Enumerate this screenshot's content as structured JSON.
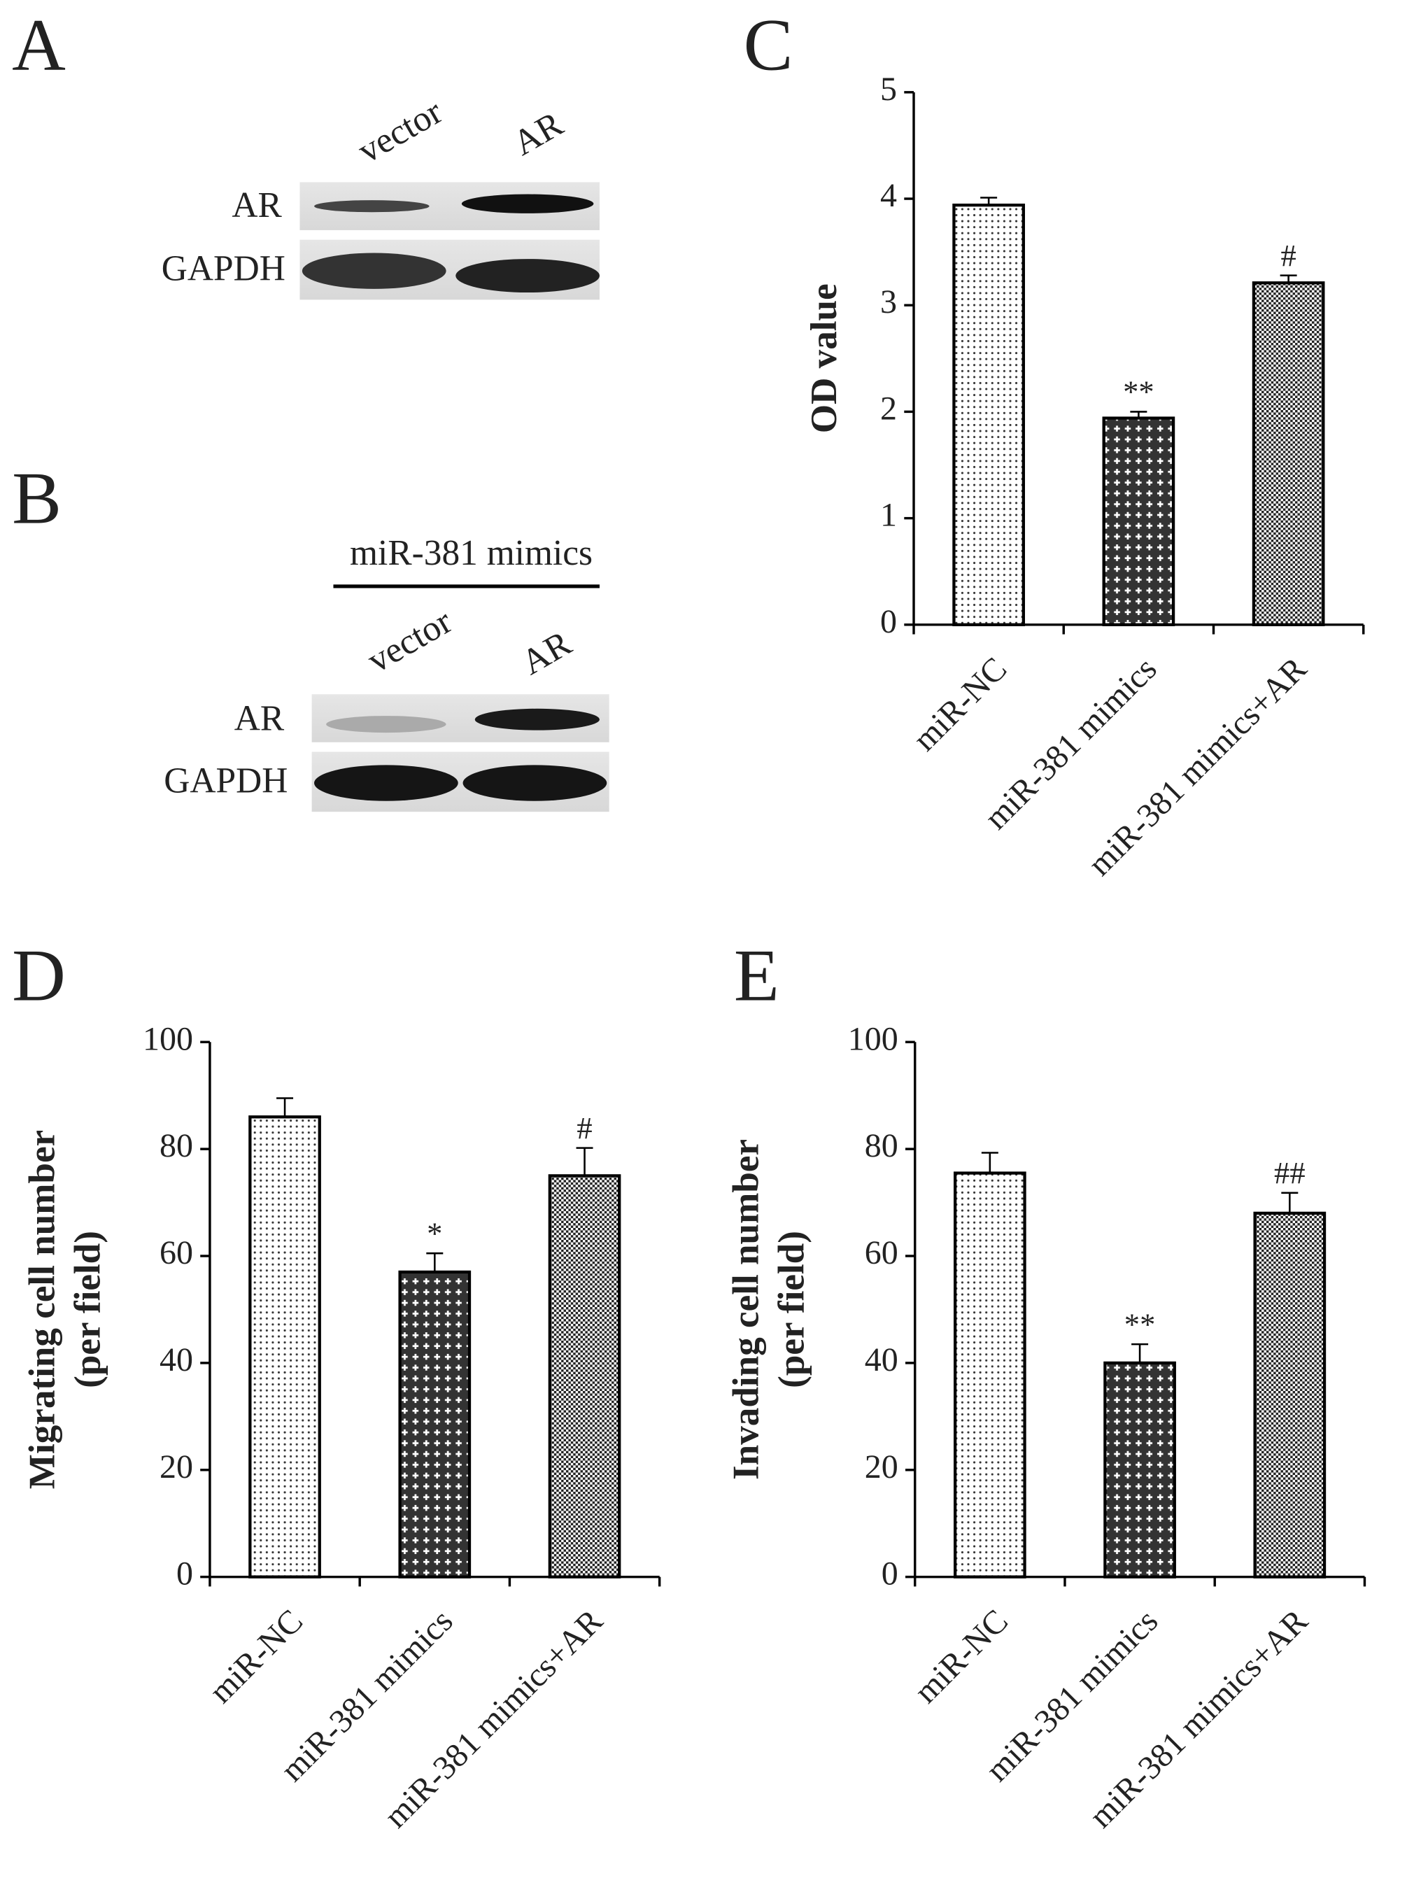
{
  "chart_data": [
    {
      "type": "bar",
      "panel": "C",
      "ylabel": [
        "OD value"
      ],
      "categories": [
        "miR-NC",
        "miR-381 mimics",
        "miR-381 mimics+AR"
      ],
      "values": [
        3.94,
        1.94,
        3.21
      ],
      "errors": [
        0.07,
        0.06,
        0.07
      ],
      "annotations": [
        null,
        "**",
        "#"
      ],
      "patterns": [
        "dots",
        "crosses",
        "checks"
      ],
      "ylim": [
        0,
        5
      ],
      "yticks": [
        0,
        1,
        2,
        3,
        4,
        5
      ]
    },
    {
      "type": "bar",
      "panel": "D",
      "ylabel": [
        "Migrating cell number",
        "(per field)"
      ],
      "categories": [
        "miR-NC",
        "miR-381 mimics",
        "miR-381 mimics+AR"
      ],
      "values": [
        86,
        57,
        75
      ],
      "errors": [
        3.5,
        3.5,
        5.2
      ],
      "annotations": [
        null,
        "*",
        "#"
      ],
      "patterns": [
        "dots",
        "crosses",
        "checks"
      ],
      "ylim": [
        0,
        100
      ],
      "yticks": [
        0,
        20,
        40,
        60,
        80,
        100
      ]
    },
    {
      "type": "bar",
      "panel": "E",
      "ylabel": [
        "Invading cell number",
        "(per field)"
      ],
      "categories": [
        "miR-NC",
        "miR-381 mimics",
        "miR-381 mimics+AR"
      ],
      "values": [
        75.5,
        40,
        68
      ],
      "errors": [
        3.8,
        3.5,
        3.8
      ],
      "annotations": [
        null,
        "**",
        "##"
      ],
      "patterns": [
        "dots",
        "crosses",
        "checks"
      ],
      "ylim": [
        0,
        100
      ],
      "yticks": [
        0,
        20,
        40,
        60,
        80,
        100
      ]
    }
  ],
  "blots": [
    {
      "panel": "A",
      "lanes": [
        "vector",
        "AR"
      ],
      "rows": [
        "AR",
        "GAPDH"
      ]
    },
    {
      "panel": "B",
      "treatment": "miR-381 mimics",
      "lanes": [
        "vector",
        "AR"
      ],
      "rows": [
        "AR",
        "GAPDH"
      ]
    }
  ]
}
